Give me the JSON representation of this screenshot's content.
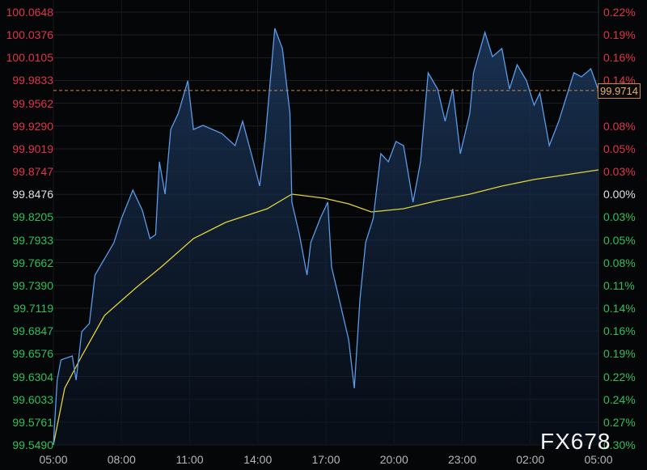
{
  "chart_data": {
    "type": "line",
    "title": "",
    "xlabel": "",
    "ylabel": "",
    "x_ticks": [
      "05:00",
      "08:00",
      "11:00",
      "14:00",
      "17:00",
      "20:00",
      "23:00",
      "02:00",
      "05:00"
    ],
    "y_ticks_left": [
      "100.0648",
      "100.0376",
      "100.0105",
      "99.9833",
      "99.9562",
      "99.9290",
      "99.9019",
      "99.8747",
      "99.8476",
      "99.8205",
      "99.7933",
      "99.7662",
      "99.7390",
      "99.7119",
      "99.6847",
      "99.6576",
      "99.6304",
      "99.6033",
      "99.5761",
      "99.5490"
    ],
    "y_ticks_right": [
      "0.22%",
      "0.19%",
      "0.16%",
      "0.14%",
      "",
      "0.08%",
      "0.05%",
      "0.03%",
      "0.00%",
      "0.03%",
      "0.05%",
      "0.08%",
      "0.11%",
      "0.14%",
      "0.16%",
      "0.19%",
      "0.22%",
      "0.24%",
      "0.27%",
      "0.30%"
    ],
    "ylim": [
      99.549,
      100.0648
    ],
    "reference_price": 99.8476,
    "last_price": "99.9714",
    "grid": true,
    "colors": {
      "price": "#5b9be8",
      "average": "#e0d43a",
      "last_line": "#d08a3a",
      "up": "#e0344a",
      "down": "#2ec05a",
      "neutral": "#e0e0e0"
    },
    "series": [
      {
        "role": "price",
        "x": [
          "05:00",
          "05:10",
          "05:20",
          "05:50",
          "06:00",
          "06:15",
          "06:35",
          "06:50",
          "07:15",
          "07:40",
          "08:00",
          "08:30",
          "08:55",
          "09:15",
          "09:30",
          "09:40",
          "09:55",
          "10:10",
          "10:30",
          "10:55",
          "11:10",
          "11:35",
          "12:00",
          "12:25",
          "13:00",
          "13:20",
          "13:40",
          "14:05",
          "14:20",
          "14:45",
          "15:05",
          "15:25",
          "15:30",
          "15:50",
          "16:10",
          "16:20",
          "16:45",
          "17:05",
          "17:15",
          "17:35",
          "18:00",
          "18:15",
          "18:30",
          "18:45",
          "19:05",
          "19:25",
          "19:45",
          "20:05",
          "20:25",
          "20:50",
          "21:10",
          "21:30",
          "21:55",
          "22:15",
          "22:35",
          "22:55",
          "23:20",
          "23:30",
          "00:00",
          "00:20",
          "00:45",
          "01:05",
          "01:25",
          "01:50",
          "02:10",
          "02:25",
          "02:50",
          "03:15",
          "03:35",
          "03:55",
          "04:15",
          "04:40",
          "05:00"
        ],
        "values": [
          99.549,
          99.6262,
          99.6503,
          99.6551,
          99.6262,
          99.684,
          99.6937,
          99.7515,
          99.7708,
          99.7901,
          99.819,
          99.8527,
          99.8286,
          99.7949,
          99.7997,
          99.8865,
          99.8479,
          99.925,
          99.9443,
          99.9829,
          99.925,
          99.9298,
          99.925,
          99.9202,
          99.9057,
          99.9347,
          99.9009,
          99.8575,
          99.9154,
          100.0455,
          100.0214,
          99.9443,
          99.8383,
          99.7997,
          99.7515,
          99.7901,
          99.819,
          99.8383,
          99.7611,
          99.7226,
          99.6744,
          99.6165,
          99.7226,
          99.7901,
          99.819,
          99.8961,
          99.8865,
          99.9106,
          99.9057,
          99.8383,
          99.8865,
          99.9925,
          99.9732,
          99.9347,
          99.9732,
          99.8961,
          99.9443,
          99.9925,
          100.0407,
          100.0118,
          100.0214,
          99.9732,
          100.0021,
          99.9829,
          99.9539,
          99.9684,
          99.9057,
          99.9347,
          99.9636,
          99.9925,
          99.9877,
          99.9973,
          99.9714
        ]
      },
      {
        "role": "average",
        "x": [
          "05:00",
          "05:30",
          "06:15",
          "07:15",
          "08:40",
          "09:45",
          "11:10",
          "12:35",
          "14:25",
          "15:30",
          "16:55",
          "18:00",
          "19:00",
          "20:25",
          "21:55",
          "23:20",
          "00:45",
          "02:10",
          "03:35",
          "05:00"
        ],
        "values": [
          99.549,
          99.6165,
          99.6551,
          99.7033,
          99.737,
          99.7611,
          99.7949,
          99.8142,
          99.8305,
          99.8479,
          99.8431,
          99.8363,
          99.8267,
          99.8305,
          99.8402,
          99.8479,
          99.8575,
          99.8653,
          99.871,
          99.8768
        ]
      }
    ]
  },
  "watermark": "FX678"
}
